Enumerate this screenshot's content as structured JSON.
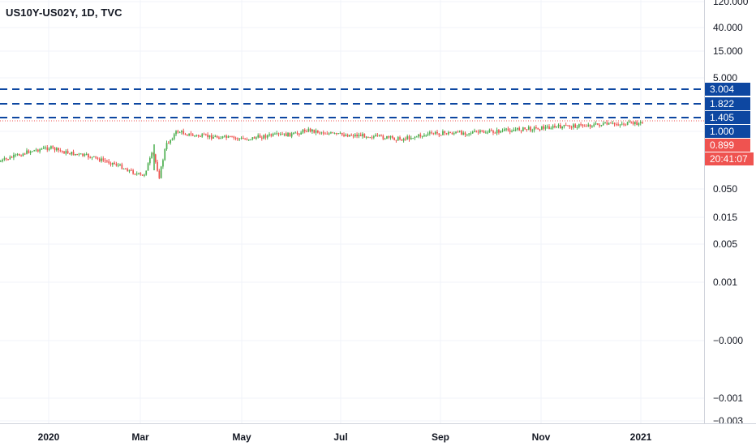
{
  "header": {
    "symbol_title": "US10Y-US02Y, 1D, TVC"
  },
  "colors": {
    "up": "#26a69a",
    "up_bright": "#4caf50",
    "down": "#ef5350",
    "hline": "#0d47a1",
    "tag_blue": "#0d47a1",
    "tag_red": "#ef5350",
    "grid": "#f0f3fa",
    "axis_border": "#d1d4dc"
  },
  "chart_data": {
    "type": "candlestick",
    "title": "US10Y-US02Y, 1D, TVC",
    "y_scale": "log",
    "grid": true,
    "y_tick_labels": [
      "120.000",
      "40.000",
      "15.000",
      "5.000",
      "1.000",
      "0.050",
      "0.015",
      "0.005",
      "0.001",
      "−0.000",
      "−0.001",
      "−0.003"
    ],
    "x_tick_labels": [
      "2020",
      "Mar",
      "May",
      "Jul",
      "Sep",
      "Nov",
      "2021"
    ],
    "horizontal_lines": [
      {
        "label": "3.004",
        "value": 3.004,
        "style": "dashed"
      },
      {
        "label": "1.822",
        "value": 1.822,
        "style": "dashed"
      },
      {
        "label": "1.405",
        "value": 1.405,
        "style": "dashed"
      }
    ],
    "price_tags": [
      {
        "label": "1.000",
        "color": "blue"
      },
      {
        "label": "0.899",
        "color": "red"
      },
      {
        "label": "20:41:07",
        "color": "red"
      }
    ],
    "series_path": [
      {
        "date": "2019-11-15",
        "value": 0.1
      },
      {
        "date": "2019-12-01",
        "value": 0.14
      },
      {
        "date": "2019-12-20",
        "value": 0.23
      },
      {
        "date": "2020-01-01",
        "value": 0.27
      },
      {
        "date": "2020-01-10",
        "value": 0.22
      },
      {
        "date": "2020-01-25",
        "value": 0.18
      },
      {
        "date": "2020-02-10",
        "value": 0.13
      },
      {
        "date": "2020-02-28",
        "value": 0.07
      },
      {
        "date": "2020-03-05",
        "value": 0.22
      },
      {
        "date": "2020-03-09",
        "value": 0.07
      },
      {
        "date": "2020-03-13",
        "value": 0.3
      },
      {
        "date": "2020-03-20",
        "value": 0.58
      },
      {
        "date": "2020-03-30",
        "value": 0.47
      },
      {
        "date": "2020-04-15",
        "value": 0.44
      },
      {
        "date": "2020-05-01",
        "value": 0.4
      },
      {
        "date": "2020-05-15",
        "value": 0.47
      },
      {
        "date": "2020-06-01",
        "value": 0.5
      },
      {
        "date": "2020-06-08",
        "value": 0.62
      },
      {
        "date": "2020-06-25",
        "value": 0.5
      },
      {
        "date": "2020-07-15",
        "value": 0.47
      },
      {
        "date": "2020-08-05",
        "value": 0.4
      },
      {
        "date": "2020-08-25",
        "value": 0.52
      },
      {
        "date": "2020-09-15",
        "value": 0.54
      },
      {
        "date": "2020-10-01",
        "value": 0.56
      },
      {
        "date": "2020-10-15",
        "value": 0.62
      },
      {
        "date": "2020-11-01",
        "value": 0.68
      },
      {
        "date": "2020-11-15",
        "value": 0.72
      },
      {
        "date": "2020-12-01",
        "value": 0.77
      },
      {
        "date": "2020-12-15",
        "value": 0.8
      },
      {
        "date": "2021-01-01",
        "value": 0.84
      },
      {
        "date": "2021-01-05",
        "value": 0.899
      }
    ]
  }
}
